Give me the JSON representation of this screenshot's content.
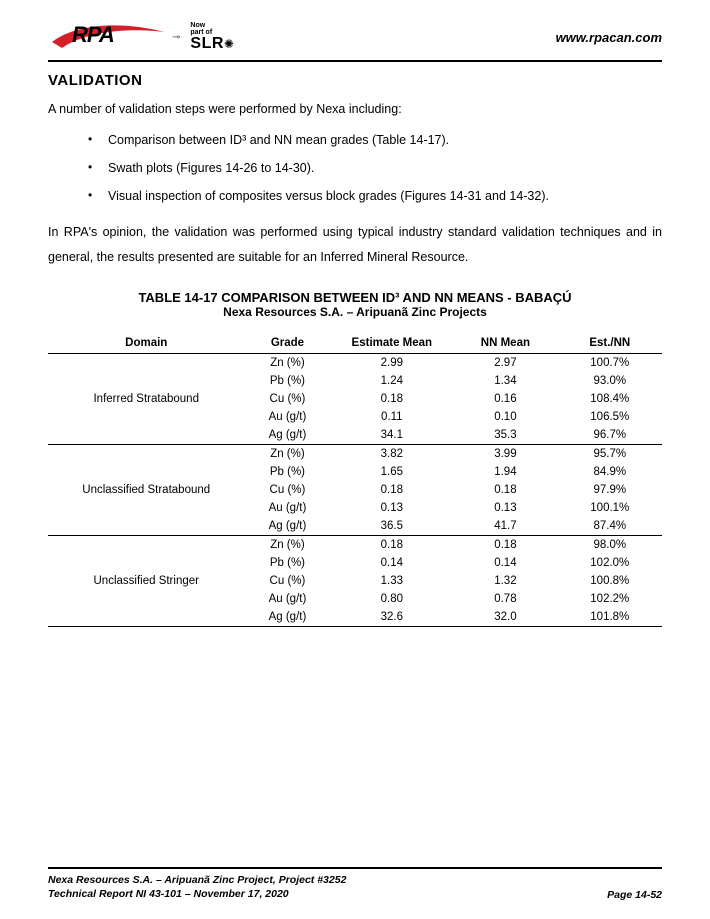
{
  "header": {
    "rpa_text": "RPA",
    "slr_now": "Now",
    "slr_part": "part of",
    "slr_text": "SLR",
    "url": "www.rpacan.com",
    "swoosh_color": "#d4202b"
  },
  "section_title": "VALIDATION",
  "intro_line": "A number of validation steps were performed by Nexa including:",
  "bullets": [
    "Comparison between ID³ and NN mean grades (Table 14-17).",
    "Swath plots (Figures 14-26 to 14-30).",
    "Visual inspection of composites versus block grades (Figures 14-31 and 14-32)."
  ],
  "opinion_para": "In RPA's opinion, the validation was performed using typical industry standard validation techniques and in general, the results presented are suitable for an Inferred Mineral Resource.",
  "table": {
    "title": "TABLE 14-17   COMPARISON BETWEEN ID³ AND NN MEANS - BABAÇÚ",
    "subtitle": "Nexa Resources S.A. – Aripuanã Zinc Projects",
    "columns": [
      "Domain",
      "Grade",
      "Estimate Mean",
      "NN Mean",
      "Est./NN"
    ],
    "groups": [
      {
        "domain": "Inferred Stratabound",
        "rows": [
          [
            "Zn (%)",
            "2.99",
            "2.97",
            "100.7%"
          ],
          [
            "Pb (%)",
            "1.24",
            "1.34",
            "93.0%"
          ],
          [
            "Cu (%)",
            "0.18",
            "0.16",
            "108.4%"
          ],
          [
            "Au (g/t)",
            "0.11",
            "0.10",
            "106.5%"
          ],
          [
            "Ag (g/t)",
            "34.1",
            "35.3",
            "96.7%"
          ]
        ]
      },
      {
        "domain": "Unclassified Stratabound",
        "rows": [
          [
            "Zn (%)",
            "3.82",
            "3.99",
            "95.7%"
          ],
          [
            "Pb (%)",
            "1.65",
            "1.94",
            "84.9%"
          ],
          [
            "Cu (%)",
            "0.18",
            "0.18",
            "97.9%"
          ],
          [
            "Au (g/t)",
            "0.13",
            "0.13",
            "100.1%"
          ],
          [
            "Ag (g/t)",
            "36.5",
            "41.7",
            "87.4%"
          ]
        ]
      },
      {
        "domain": "Unclassified Stringer",
        "rows": [
          [
            "Zn (%)",
            "0.18",
            "0.18",
            "98.0%"
          ],
          [
            "Pb (%)",
            "0.14",
            "0.14",
            "102.0%"
          ],
          [
            "Cu (%)",
            "1.33",
            "1.32",
            "100.8%"
          ],
          [
            "Au (g/t)",
            "0.80",
            "0.78",
            "102.2%"
          ],
          [
            "Ag (g/t)",
            "32.6",
            "32.0",
            "101.8%"
          ]
        ]
      }
    ]
  },
  "footer": {
    "line1": "Nexa Resources S.A. – Aripuanã Zinc Project, Project #3252",
    "line2": "Technical Report NI 43-101 – November 17, 2020",
    "page": "Page 14-52"
  }
}
